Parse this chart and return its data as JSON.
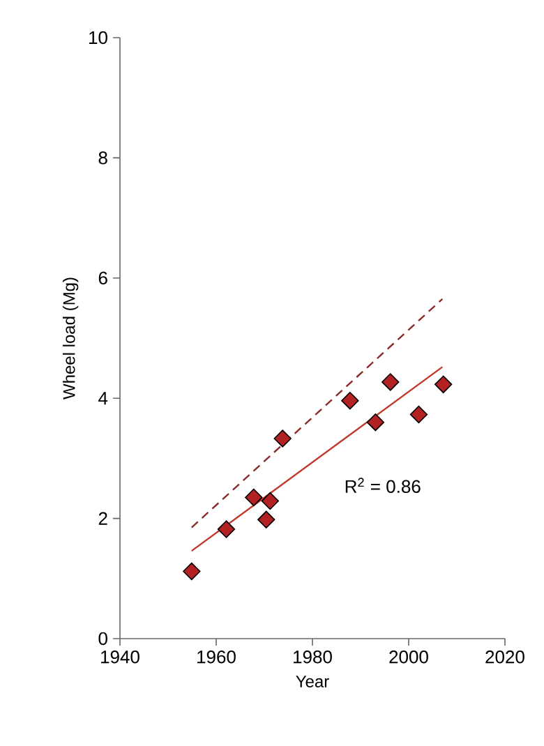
{
  "chart_data": {
    "type": "scatter",
    "xlabel": "Year",
    "ylabel": "Wheel load (Mg)",
    "xlim": [
      1940,
      2020
    ],
    "xticks": [
      1940,
      1960,
      1980,
      2000,
      2020
    ],
    "ylim": [
      0,
      10
    ],
    "yticks": [
      0,
      2,
      4,
      6,
      8,
      10
    ],
    "grid": false,
    "series": [
      {
        "type": "line",
        "line_style": "dashed",
        "marker": "none",
        "color": "#8b2a2a",
        "x": [
          1954.9,
          2007
        ],
        "values": [
          1.85,
          5.65
        ]
      },
      {
        "type": "line",
        "line_style": "solid",
        "marker": "none",
        "color": "#c0392b",
        "x": [
          1954.9,
          2007
        ],
        "values": [
          1.46,
          4.52
        ]
      },
      {
        "marker": "diamond",
        "color": "#b22222",
        "x": [
          1954.9,
          1962.1,
          1967.8,
          1971.2,
          1970.4,
          1973.8,
          1987.8,
          1993.1,
          1996.2,
          2002.1,
          2007.2
        ],
        "values": [
          1.12,
          1.82,
          2.35,
          2.29,
          1.98,
          3.33,
          3.96,
          3.6,
          4.27,
          3.73,
          4.23
        ]
      }
    ],
    "annotations": [
      "R$^{2}$ = 0.86"
    ]
  }
}
